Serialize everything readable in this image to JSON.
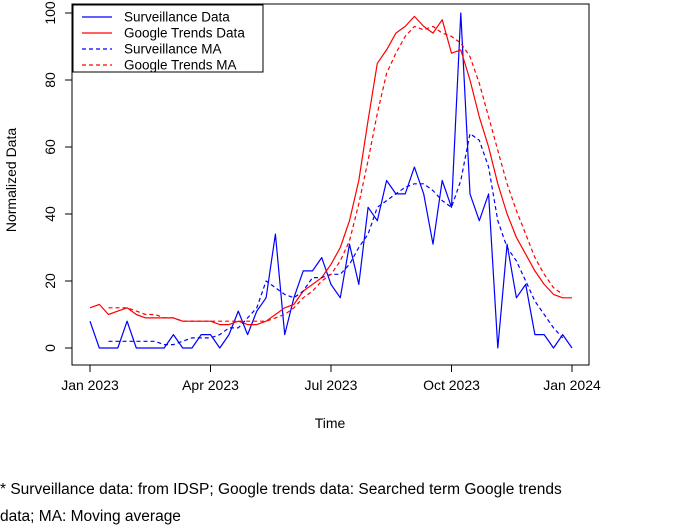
{
  "chart_data": {
    "type": "line",
    "title": "",
    "xlabel": "Time",
    "ylabel": "Normalized Data",
    "ylim": [
      0,
      100
    ],
    "yticks": [
      "0",
      "20",
      "40",
      "60",
      "80",
      "100"
    ],
    "xticks": [
      "Jan 2023",
      "Apr 2023",
      "Jul 2023",
      "Oct 2023",
      "Jan 2024"
    ],
    "xtick_weeks": [
      0,
      13,
      26,
      39,
      52
    ],
    "x_unit": "weeks since 2023-01-01",
    "grid": false,
    "legend_position": "top-left",
    "series": [
      {
        "name": "Surveillance Data",
        "color": "#0000ff",
        "dash": "solid",
        "x": [
          0,
          1,
          2,
          3,
          4,
          5,
          6,
          7,
          8,
          9,
          10,
          11,
          12,
          13,
          14,
          15,
          16,
          17,
          18,
          19,
          20,
          21,
          22,
          23,
          24,
          25,
          26,
          27,
          28,
          29,
          30,
          31,
          32,
          33,
          34,
          35,
          36,
          37,
          38,
          39,
          40,
          41,
          42,
          43,
          44,
          45,
          46,
          47,
          48,
          49,
          50,
          51,
          52
        ],
        "values": [
          8,
          0,
          0,
          0,
          8,
          0,
          0,
          0,
          0,
          4,
          0,
          0,
          4,
          4,
          0,
          4,
          11,
          4,
          11,
          15,
          34,
          4,
          15,
          23,
          23,
          27,
          19,
          15,
          31,
          19,
          42,
          38,
          50,
          46,
          46,
          54,
          46,
          31,
          50,
          42,
          100,
          46,
          38,
          46,
          0,
          31,
          15,
          19,
          4,
          4,
          0,
          4,
          0
        ]
      },
      {
        "name": "Google Trends Data",
        "color": "#ff0000",
        "dash": "solid",
        "x": [
          0,
          1,
          2,
          3,
          4,
          5,
          6,
          7,
          8,
          9,
          10,
          11,
          12,
          13,
          14,
          15,
          16,
          17,
          18,
          19,
          20,
          21,
          22,
          23,
          24,
          25,
          26,
          27,
          28,
          29,
          30,
          31,
          32,
          33,
          34,
          35,
          36,
          37,
          38,
          39,
          40,
          41,
          42,
          43,
          44,
          45,
          46,
          47,
          48,
          49,
          50,
          51,
          52
        ],
        "values": [
          12,
          13,
          10,
          11,
          12,
          10,
          9,
          9,
          9,
          9,
          8,
          8,
          8,
          8,
          7,
          7,
          8,
          7,
          7,
          8,
          10,
          12,
          13,
          17,
          19,
          21,
          25,
          30,
          38,
          50,
          68,
          85,
          89,
          94,
          96,
          99,
          96,
          94,
          98,
          88,
          89,
          80,
          69,
          60,
          49,
          40,
          33,
          28,
          23,
          19,
          16,
          15,
          15
        ]
      },
      {
        "name": "Surveillance MA",
        "color": "#0000ff",
        "dash": "dashed",
        "x": [
          2,
          3,
          4,
          5,
          6,
          7,
          8,
          9,
          10,
          11,
          12,
          13,
          14,
          15,
          16,
          17,
          18,
          19,
          20,
          21,
          22,
          23,
          24,
          25,
          26,
          27,
          28,
          29,
          30,
          31,
          32,
          33,
          34,
          35,
          36,
          37,
          38,
          39,
          40,
          41,
          42,
          43,
          44,
          45,
          46,
          47,
          48,
          49,
          50,
          51
        ],
        "values": [
          2,
          2,
          2,
          2,
          2,
          2,
          1,
          1,
          2,
          3,
          3,
          3,
          4,
          6,
          6,
          9,
          12,
          20,
          18,
          16,
          15,
          17,
          21,
          21,
          22,
          22,
          25,
          30,
          34,
          42,
          44,
          46,
          48,
          49,
          49,
          47,
          44,
          42,
          50,
          64,
          62,
          54,
          38,
          30,
          26,
          20,
          14,
          10,
          6,
          3
        ]
      },
      {
        "name": "Google Trends MA",
        "color": "#ff0000",
        "dash": "dashed",
        "x": [
          2,
          3,
          4,
          5,
          6,
          7,
          8,
          9,
          10,
          11,
          12,
          13,
          14,
          15,
          16,
          17,
          18,
          19,
          20,
          21,
          22,
          23,
          24,
          25,
          26,
          27,
          28,
          29,
          30,
          31,
          32,
          33,
          34,
          35,
          36,
          37,
          38,
          39,
          40,
          41,
          42,
          43,
          44,
          45,
          46,
          47,
          48,
          49,
          50,
          51
        ],
        "values": [
          12,
          12,
          12,
          11,
          10,
          10,
          9,
          9,
          8,
          8,
          8,
          8,
          8,
          8,
          8,
          8,
          8,
          8,
          9,
          10,
          12,
          15,
          17,
          20,
          22,
          26,
          32,
          43,
          56,
          70,
          82,
          88,
          93,
          96,
          95,
          96,
          94,
          93,
          91,
          87,
          79,
          69,
          59,
          49,
          41,
          34,
          27,
          22,
          18,
          16
        ]
      }
    ]
  },
  "footnote": {
    "line1": "* Surveillance data: from IDSP; Google trends data: Searched term Google trends",
    "line2": "data; MA: Moving average"
  }
}
